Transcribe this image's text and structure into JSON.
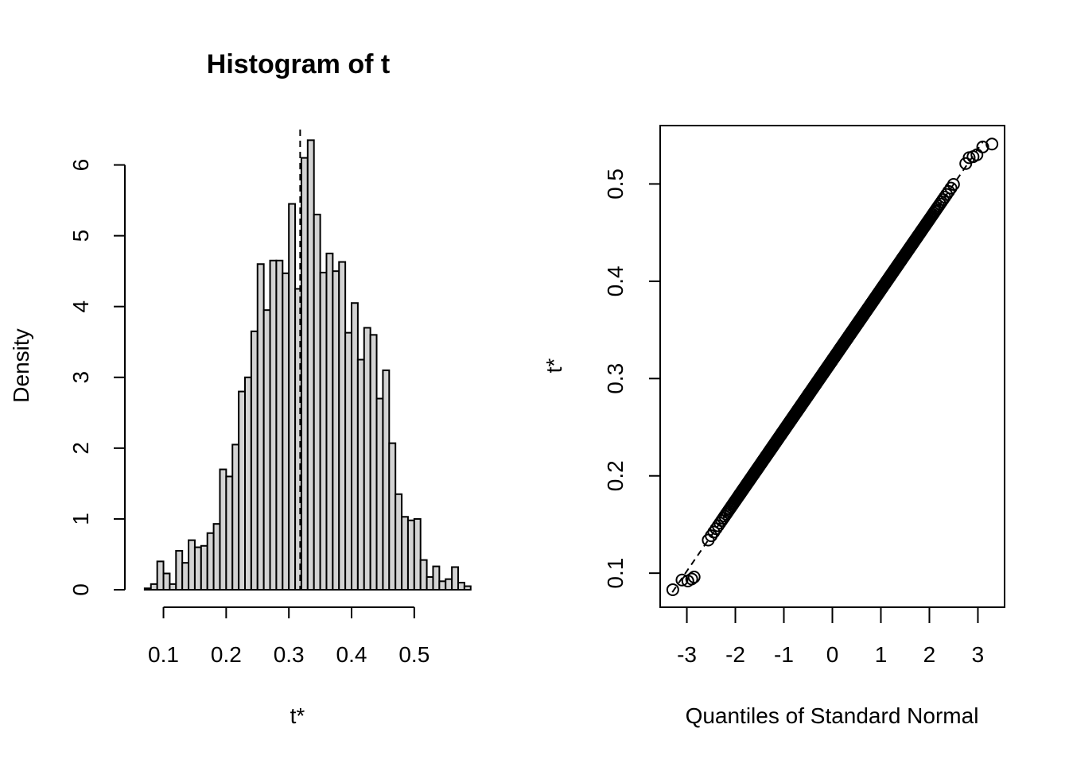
{
  "chart_data": [
    {
      "type": "bar",
      "title": "Histogram of t",
      "xlabel": "t*",
      "ylabel": "Density",
      "xlim": [
        0.06,
        0.57
      ],
      "ylim": [
        0,
        6.5
      ],
      "xticks": [
        0.1,
        0.2,
        0.3,
        0.4,
        0.5
      ],
      "xtick_labels": [
        "0.1",
        "0.2",
        "0.3",
        "0.4",
        "0.5"
      ],
      "yticks": [
        0,
        1,
        2,
        3,
        4,
        5,
        6
      ],
      "ytick_labels": [
        "0",
        "1",
        "2",
        "3",
        "4",
        "5",
        "6"
      ],
      "bin_start": 0.06,
      "bin_width": 0.01,
      "values": [
        0,
        0.02,
        0.08,
        0.4,
        0.23,
        0.08,
        0.55,
        0.38,
        0.7,
        0.6,
        0.62,
        0.8,
        0.93,
        1.7,
        1.6,
        2.05,
        2.8,
        3.0,
        3.65,
        4.6,
        3.95,
        4.65,
        4.65,
        4.47,
        5.45,
        4.25,
        6.1,
        6.35,
        5.3,
        4.48,
        4.75,
        4.5,
        4.63,
        3.63,
        4.05,
        3.25,
        3.7,
        3.6,
        2.7,
        3.1,
        2.07,
        1.35,
        1.03,
        0.98,
        1.0,
        0.42,
        0.18,
        0.33,
        0.12,
        0.15,
        0.32,
        0.1,
        0.05,
        0
      ],
      "vline": 0.318
    },
    {
      "type": "scatter",
      "title": "",
      "xlabel": "Quantiles of Standard Normal",
      "ylabel": "t*",
      "xlim": [
        -3.55,
        3.55
      ],
      "ylim": [
        0.065,
        0.56
      ],
      "xticks": [
        -3,
        -2,
        -1,
        0,
        1,
        2,
        3
      ],
      "xtick_labels": [
        "-3",
        "-2",
        "-1",
        "0",
        "1",
        "2",
        "3"
      ],
      "yticks": [
        0.1,
        0.2,
        0.3,
        0.4,
        0.5
      ],
      "ytick_labels": [
        "0.1",
        "0.2",
        "0.3",
        "0.4",
        "0.5"
      ],
      "n_points": 1999,
      "mean": 0.319,
      "sd": 0.0723,
      "reference_line": {
        "intercept": 0.319,
        "slope": 0.0723
      },
      "extreme_points": [
        {
          "x": -3.29,
          "y": 0.083
        },
        {
          "x": -3.1,
          "y": 0.093
        },
        {
          "x": -2.98,
          "y": 0.092
        },
        {
          "x": -2.9,
          "y": 0.094
        },
        {
          "x": -2.85,
          "y": 0.096
        },
        {
          "x": 2.75,
          "y": 0.521
        },
        {
          "x": 2.82,
          "y": 0.527
        },
        {
          "x": 2.9,
          "y": 0.528
        },
        {
          "x": 2.98,
          "y": 0.53
        },
        {
          "x": 3.1,
          "y": 0.538
        },
        {
          "x": 3.29,
          "y": 0.541
        }
      ]
    }
  ]
}
